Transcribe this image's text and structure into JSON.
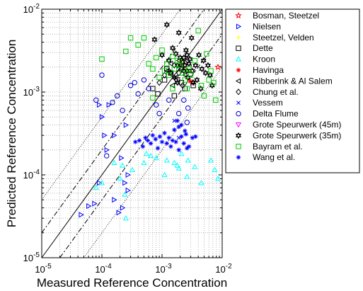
{
  "chart_data": {
    "type": "scatter",
    "xlabel": "Measured Reference Concentration",
    "ylabel": "Predicted Reference Concentration",
    "x_scale": "log",
    "y_scale": "log",
    "xlim": [
      1e-05,
      0.01
    ],
    "ylim": [
      1e-05,
      0.01
    ],
    "grid": true,
    "legend_position": "outside-right",
    "x_ticks": [
      {
        "base": "10",
        "exp": "-5"
      },
      {
        "base": "10",
        "exp": "-4"
      },
      {
        "base": "10",
        "exp": "-3"
      },
      {
        "base": "10",
        "exp": "-2"
      }
    ],
    "y_ticks": [
      {
        "base": "10",
        "exp": "-5"
      },
      {
        "base": "10",
        "exp": "-4"
      },
      {
        "base": "10",
        "exp": "-3"
      },
      {
        "base": "10",
        "exp": "-2"
      }
    ],
    "reference_lines": [
      {
        "style": "solid",
        "factor": 1
      },
      {
        "style": "dashdot",
        "factor": 2
      },
      {
        "style": "dashdot",
        "factor": 0.5
      },
      {
        "style": "dotted",
        "factor": 5
      },
      {
        "style": "dotted",
        "factor": 0.2
      }
    ],
    "series": [
      {
        "name": "Bosman, Steetzel",
        "marker": "star",
        "color": "#ff0000",
        "points": [
          [
            0.0085,
            0.002
          ],
          [
            0.0032,
            0.0013
          ]
        ]
      },
      {
        "name": "Nielsen",
        "marker": "triangle-right",
        "color": "#0000ff",
        "points": [
          [
            4.5e-05,
            3.3e-05
          ],
          [
            6e-05,
            4.2e-05
          ],
          [
            7.5e-05,
            4.5e-05
          ],
          [
            9e-05,
            8e-05
          ],
          [
            0.00012,
            0.0002
          ],
          [
            0.00011,
            0.0003
          ],
          [
            0.00016,
            0.0003
          ],
          [
            0.00021,
            0.00016
          ],
          [
            0.00024,
            8e-05
          ],
          [
            0.00027,
            6.5e-05
          ],
          [
            0.00016,
            5e-05
          ],
          [
            0.00019,
            3.5e-05
          ],
          [
            0.00027,
            0.0001
          ],
          [
            0.00022,
            4e-05
          ],
          [
            0.0001,
            0.0005
          ],
          [
            0.00013,
            0.0007
          ],
          [
            0.00025,
            0.0004
          ],
          [
            9e-05,
            0.0007
          ]
        ]
      },
      {
        "name": "Steetzel, Velden",
        "marker": "plus",
        "color": "#ffff00",
        "points": [
          [
            0.0021,
            0.0023
          ],
          [
            0.0025,
            0.0019
          ]
        ]
      },
      {
        "name": "Dette",
        "marker": "square",
        "color": "#000000",
        "points": [
          [
            0.0007,
            0.0011
          ],
          [
            0.00085,
            0.00095
          ],
          [
            0.0011,
            0.0014
          ],
          [
            0.0014,
            0.0017
          ],
          [
            0.0016,
            0.0009
          ],
          [
            0.0024,
            0.0011
          ],
          [
            0.0033,
            0.0012
          ],
          [
            0.0012,
            0.0019
          ],
          [
            0.0021,
            0.0013
          ],
          [
            0.0028,
            0.002
          ],
          [
            0.0018,
            0.0014
          ]
        ]
      },
      {
        "name": "Kroon",
        "marker": "triangle-up",
        "color": "#00ffff",
        "points": [
          [
            8e-05,
            7e-05
          ],
          [
            0.0001,
            8e-05
          ],
          [
            0.00016,
            0.00014
          ],
          [
            0.00022,
            0.00013
          ],
          [
            0.0002,
            9e-05
          ],
          [
            0.00024,
            5.8e-05
          ],
          [
            0.00032,
            0.000115
          ],
          [
            0.0005,
            0.00014
          ],
          [
            0.00055,
            0.00018
          ],
          [
            0.00065,
            0.00017
          ],
          [
            0.0008,
            0.00016
          ],
          [
            0.0012,
            0.00015
          ],
          [
            0.0016,
            0.00014
          ],
          [
            0.0011,
            0.0001
          ],
          [
            0.0019,
            0.00012
          ],
          [
            0.0021,
            0.00018
          ],
          [
            0.0027,
            0.00015
          ],
          [
            0.0035,
            0.000125
          ],
          [
            0.0026,
            9.5e-05
          ],
          [
            0.0045,
            8e-05
          ],
          [
            0.0065,
            0.00015
          ],
          [
            0.0075,
            0.000115
          ],
          [
            0.0085,
            9e-05
          ],
          [
            0.00025,
            3e-05
          ],
          [
            0.0018,
            0.00013
          ]
        ]
      },
      {
        "name": "Havinga",
        "marker": "asterisk",
        "color": "#ff0000",
        "points": [
          [
            0.0029,
            0.00135
          ]
        ]
      },
      {
        "name": "Ribberink & Al Salem",
        "marker": "triangle-left",
        "color": "#000000",
        "points": [
          [
            0.0012,
            0.0018
          ],
          [
            0.0014,
            0.0022
          ],
          [
            0.0017,
            0.0015
          ],
          [
            0.0019,
            0.0024
          ],
          [
            0.0024,
            0.0016
          ],
          [
            0.0021,
            0.0021
          ],
          [
            0.0015,
            0.0012
          ],
          [
            0.0026,
            0.0024
          ]
        ]
      },
      {
        "name": "Chung et al.",
        "marker": "diamond",
        "color": "#000000",
        "points": [
          [
            0.0009,
            0.0013
          ],
          [
            0.0013,
            0.0018
          ],
          [
            0.0016,
            0.0021
          ],
          [
            0.0019,
            0.0017
          ],
          [
            0.0022,
            0.0012
          ],
          [
            0.0011,
            0.0016
          ]
        ]
      },
      {
        "name": "Vessem",
        "marker": "x",
        "color": "#0000ff",
        "points": [
          [
            0.0016,
            0.00045
          ],
          [
            0.0019,
            0.00028
          ]
        ]
      },
      {
        "name": "Delta Flume",
        "marker": "circle",
        "color": "#0000cc",
        "points": [
          [
            8e-05,
            0.0008
          ],
          [
            0.0001,
            0.0016
          ],
          [
            0.00015,
            0.00075
          ],
          [
            0.00018,
            0.0009
          ],
          [
            0.0003,
            0.0012
          ],
          [
            0.0005,
            0.0014
          ],
          [
            0.0006,
            0.0011
          ],
          [
            0.00022,
            0.0006
          ],
          [
            0.00012,
            0.00017
          ],
          [
            0.0009,
            0.00055
          ],
          [
            0.0013,
            0.0008
          ],
          [
            0.0023,
            0.0008
          ],
          [
            0.0019,
            0.00055
          ],
          [
            0.0026,
            0.00043
          ],
          [
            0.0027,
            0.00064
          ],
          [
            0.00035,
            0.0013
          ],
          [
            0.0008,
            0.0007
          ],
          [
            0.0004,
            0.00095
          ]
        ]
      },
      {
        "name": "Grote Speurwerk (45m)",
        "marker": "triangle-down",
        "color": "#ff00ff",
        "points": [
          [
            0.0024,
            0.0021
          ]
        ]
      },
      {
        "name": "Grote Speurwerk (35m)",
        "marker": "hexagram",
        "color": "#000000",
        "points": [
          [
            0.0012,
            0.0065
          ],
          [
            0.00075,
            0.0043
          ],
          [
            0.001,
            0.0028
          ],
          [
            0.0013,
            0.0024
          ],
          [
            0.0015,
            0.0034
          ],
          [
            0.0017,
            0.0029
          ],
          [
            0.0018,
            0.0021
          ],
          [
            0.0019,
            0.0052
          ],
          [
            0.002,
            0.0026
          ],
          [
            0.0022,
            0.0023
          ],
          [
            0.0023,
            0.0018
          ],
          [
            0.0024,
            0.0021
          ],
          [
            0.0025,
            0.0032
          ],
          [
            0.0026,
            0.0028
          ],
          [
            0.0027,
            0.0015
          ],
          [
            0.0028,
            0.0022
          ],
          [
            0.0029,
            0.0025
          ],
          [
            0.0031,
            0.0045
          ],
          [
            0.0032,
            0.0018
          ],
          [
            0.0033,
            0.0013
          ],
          [
            0.0036,
            0.0021
          ],
          [
            0.0038,
            0.0014
          ],
          [
            0.0041,
            0.0028
          ],
          [
            0.0044,
            0.0011
          ],
          [
            0.0046,
            0.0019
          ],
          [
            0.0049,
            0.0024
          ],
          [
            0.0053,
            0.0017
          ],
          [
            0.0058,
            0.0021
          ],
          [
            0.0063,
            0.0016
          ],
          [
            0.0068,
            0.0012
          ],
          [
            0.0014,
            0.0017
          ],
          [
            0.0016,
            0.0015
          ],
          [
            0.0018,
            0.0013
          ],
          [
            0.0021,
            0.0019
          ],
          [
            0.0023,
            0.0026
          ],
          [
            0.0026,
            0.0018
          ]
        ]
      },
      {
        "name": "Bayram et al.",
        "marker": "square",
        "color": "#00cc00",
        "points": [
          [
            0.0001,
            0.0025
          ],
          [
            0.00025,
            0.0031
          ],
          [
            0.0004,
            0.0037
          ],
          [
            0.0005,
            0.0045
          ],
          [
            0.0006,
            0.0022
          ],
          [
            0.0007,
            0.0019
          ],
          [
            0.0008,
            0.0026
          ],
          [
            0.0009,
            0.0015
          ],
          [
            0.001,
            0.0032
          ],
          [
            0.0011,
            0.0018
          ],
          [
            0.0012,
            0.0022
          ],
          [
            0.0013,
            0.0016
          ],
          [
            0.0015,
            0.0027
          ],
          [
            0.0016,
            0.0019
          ],
          [
            0.0018,
            0.0024
          ],
          [
            0.002,
            0.0021
          ],
          [
            0.0022,
            0.0017
          ],
          [
            0.0024,
            0.0014
          ],
          [
            0.0026,
            0.0011
          ],
          [
            0.0028,
            0.0019
          ],
          [
            0.003,
            0.0016
          ],
          [
            0.0035,
            0.0024
          ],
          [
            0.004,
            0.0055
          ],
          [
            0.0045,
            0.0012
          ],
          [
            0.005,
            0.0009
          ],
          [
            0.0055,
            0.0029
          ],
          [
            0.006,
            0.0014
          ],
          [
            0.0065,
            0.0018
          ],
          [
            0.0072,
            0.0013
          ],
          [
            0.0078,
            0.0008
          ],
          [
            0.0003,
            0.0045
          ],
          [
            0.0007,
            0.00085
          ],
          [
            0.0015,
            0.0011
          ]
        ]
      },
      {
        "name": "Wang et al.",
        "marker": "asterisk",
        "color": "#0000ff",
        "points": [
          [
            0.00036,
            0.00025
          ],
          [
            0.00042,
            0.00026
          ],
          [
            0.00048,
            0.00022
          ],
          [
            0.00053,
            0.00028
          ],
          [
            0.00058,
            0.00026
          ],
          [
            0.00065,
            0.00024
          ],
          [
            0.0007,
            0.0003
          ],
          [
            0.00078,
            0.00027
          ],
          [
            0.00085,
            0.00021
          ],
          [
            0.00092,
            0.00029
          ],
          [
            0.001,
            0.00025
          ],
          [
            0.0011,
            0.00032
          ],
          [
            0.0012,
            0.00024
          ],
          [
            0.0013,
            0.00028
          ],
          [
            0.0014,
            0.00022
          ],
          [
            0.0015,
            0.00026
          ],
          [
            0.0016,
            0.00035
          ],
          [
            0.0017,
            0.00025
          ],
          [
            0.0019,
            0.0002
          ],
          [
            0.0021,
            0.00029
          ],
          [
            0.0023,
            0.00024
          ],
          [
            0.0025,
            0.00031
          ],
          [
            0.0028,
            0.00022
          ],
          [
            0.0032,
            0.00028
          ],
          [
            0.0021,
            0.0004
          ],
          [
            0.0018,
            0.00045
          ],
          [
            0.0024,
            0.00034
          ],
          [
            0.0036,
            0.00029
          ],
          [
            0.0026,
            0.00021
          ],
          [
            0.0019,
            0.00038
          ]
        ]
      }
    ]
  }
}
